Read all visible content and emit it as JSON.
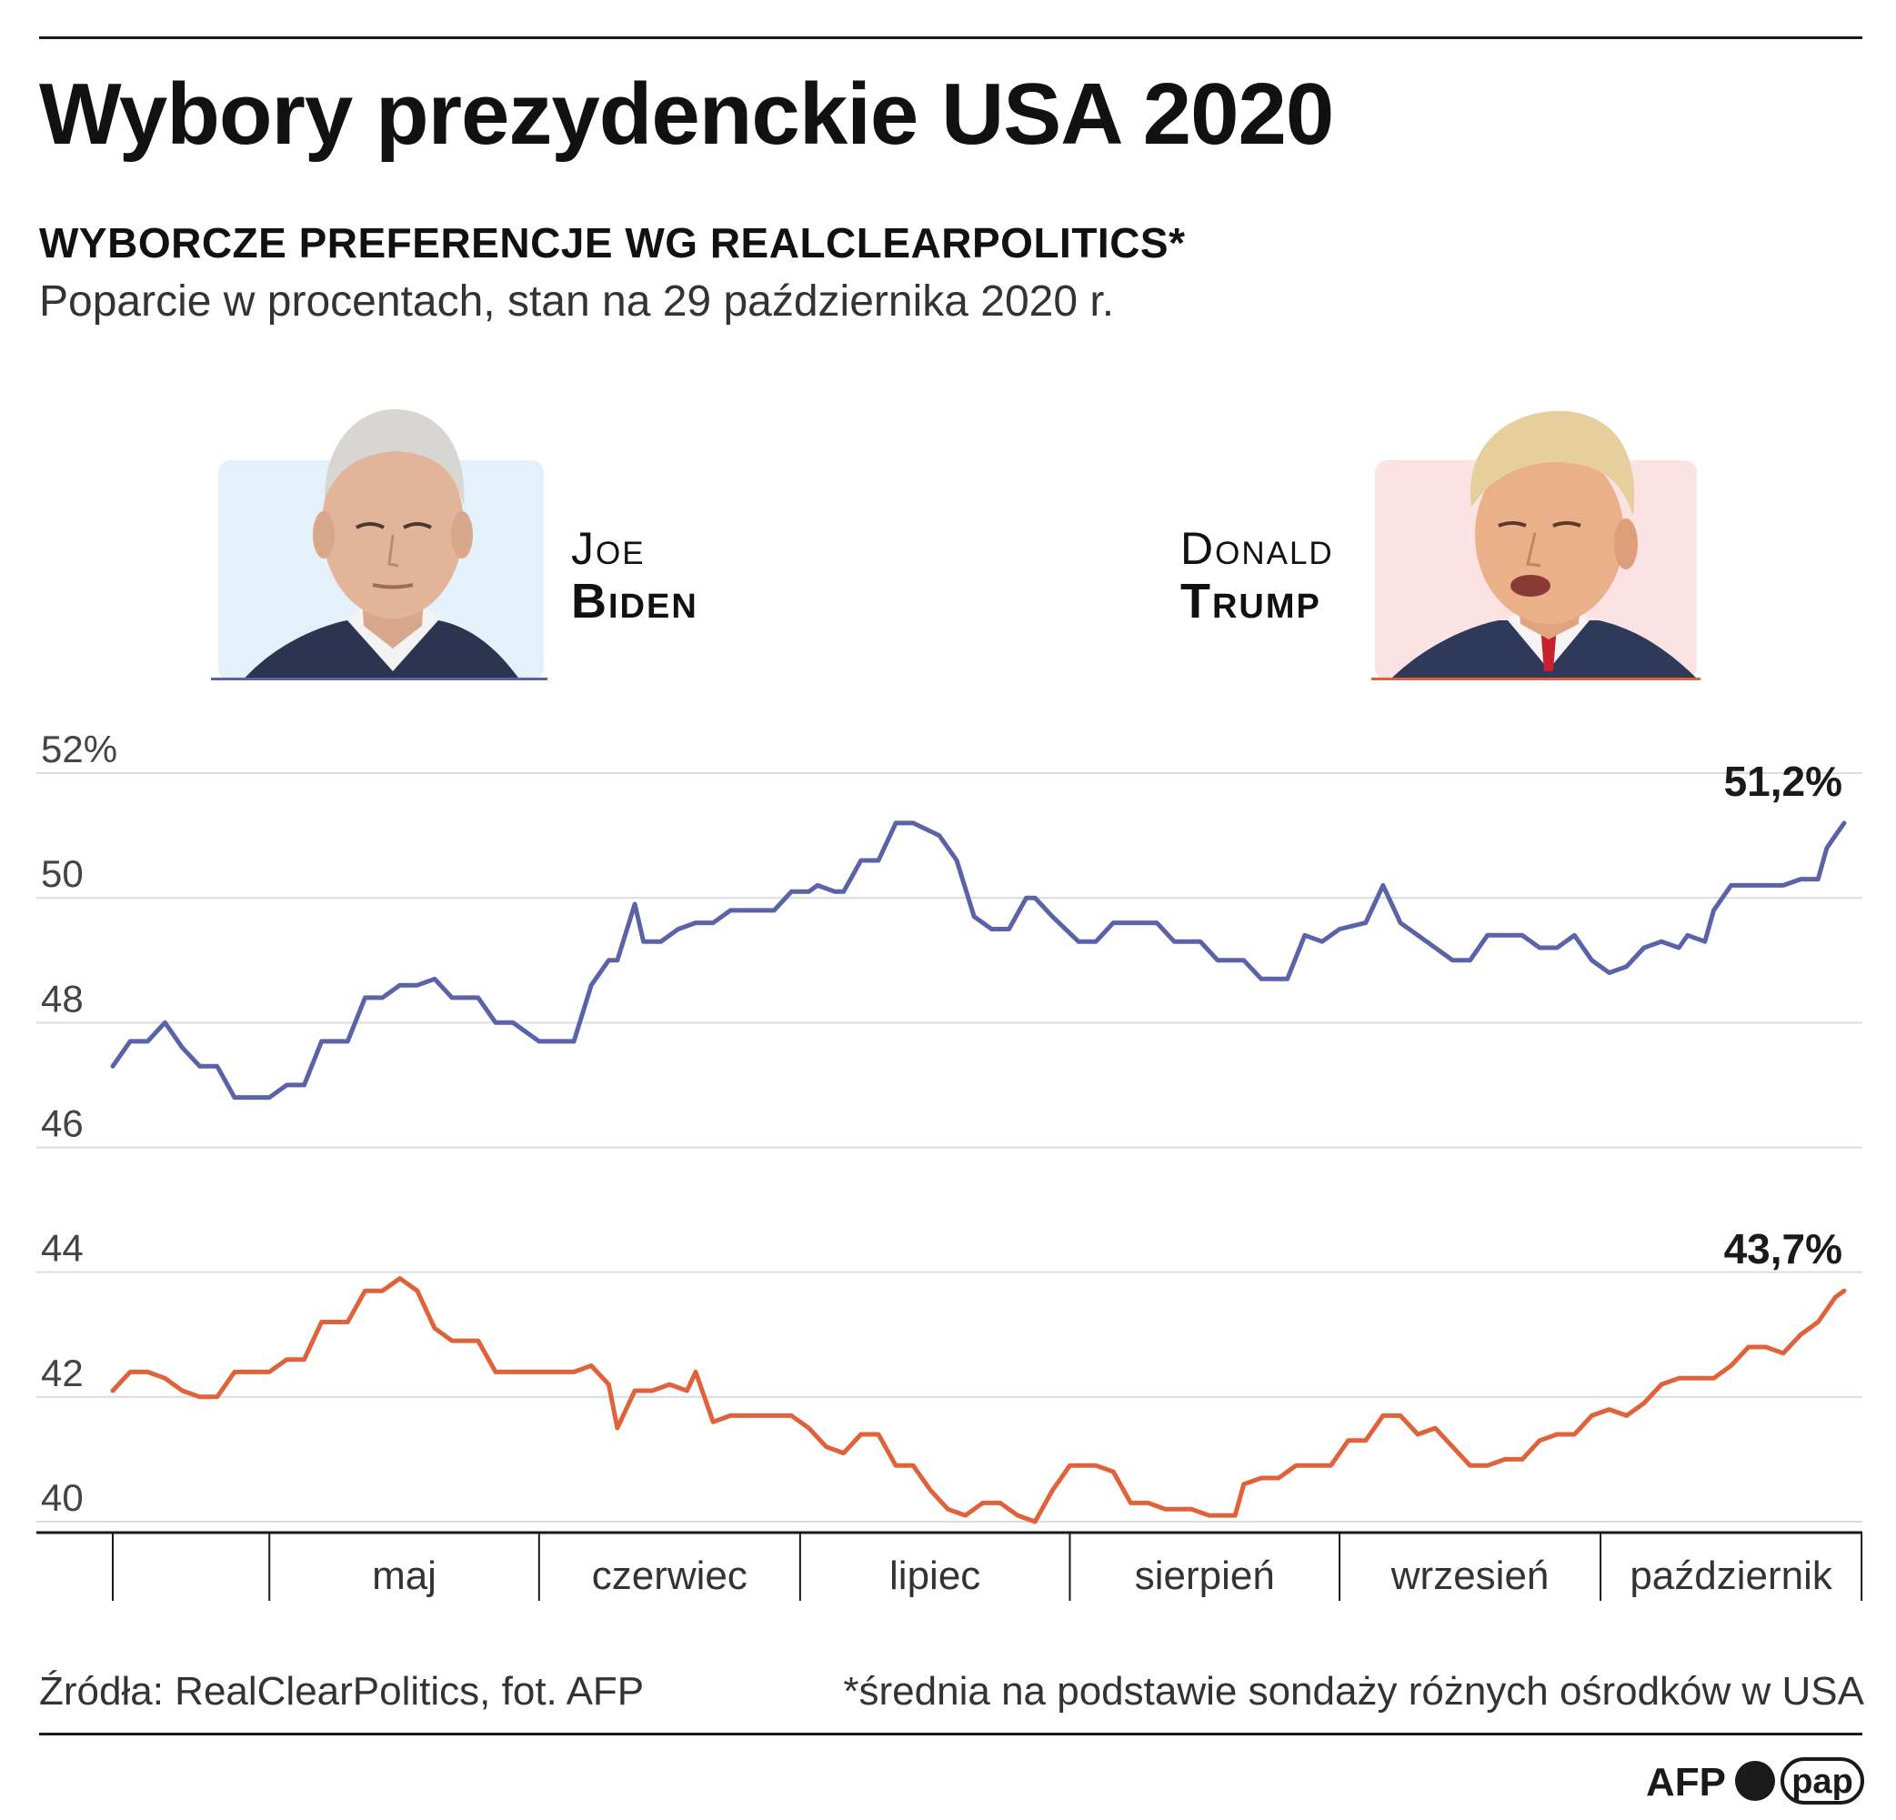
{
  "header": {
    "title": "Wybory prezydenckie USA 2020",
    "subtitle": "WYBORCZE PREFERENCJE WG REALCLEARPOLITICS*",
    "note": "Poparcie w procentach, stan na 29 października 2020 r."
  },
  "candidates": [
    {
      "first": "Joe",
      "last": "Biden",
      "color": "#5a62a8",
      "bg": "#e4f1fa"
    },
    {
      "first": "Donald",
      "last": "Trump",
      "color": "#e0623b",
      "bg": "#fbe3e3"
    }
  ],
  "chart_data": {
    "type": "line",
    "ylim": [
      40,
      52.5
    ],
    "y_ticks": [
      {
        "value": 52,
        "label": "52%"
      },
      {
        "value": 50,
        "label": "50"
      },
      {
        "value": 48,
        "label": "48"
      },
      {
        "value": 46,
        "label": "46"
      },
      {
        "value": 44,
        "label": "44"
      },
      {
        "value": 42,
        "label": "42"
      },
      {
        "value": 40,
        "label": "40"
      }
    ],
    "x_range": [
      "2020-04-13",
      "2020-10-29"
    ],
    "month_boundaries": [
      "2020-05-01",
      "2020-06-01",
      "2020-07-01",
      "2020-08-01",
      "2020-09-01",
      "2020-10-01",
      "2020-10-31"
    ],
    "months": [
      "maj",
      "czerwiec",
      "lipiec",
      "sierpień",
      "wrzesień",
      "październik"
    ],
    "grid": true,
    "series": [
      {
        "name": "Joe Biden",
        "color": "#5a62a8",
        "end_label": "51,2%",
        "points": [
          [
            "2020-04-13",
            47.3
          ],
          [
            "2020-04-15",
            47.7
          ],
          [
            "2020-04-17",
            47.7
          ],
          [
            "2020-04-19",
            48.0
          ],
          [
            "2020-04-21",
            47.6
          ],
          [
            "2020-04-23",
            47.3
          ],
          [
            "2020-04-25",
            47.3
          ],
          [
            "2020-04-27",
            46.8
          ],
          [
            "2020-05-01",
            46.8
          ],
          [
            "2020-05-03",
            47.0
          ],
          [
            "2020-05-05",
            47.0
          ],
          [
            "2020-05-07",
            47.7
          ],
          [
            "2020-05-10",
            47.7
          ],
          [
            "2020-05-12",
            48.4
          ],
          [
            "2020-05-14",
            48.4
          ],
          [
            "2020-05-16",
            48.6
          ],
          [
            "2020-05-18",
            48.6
          ],
          [
            "2020-05-20",
            48.7
          ],
          [
            "2020-05-22",
            48.4
          ],
          [
            "2020-05-25",
            48.4
          ],
          [
            "2020-05-27",
            48.0
          ],
          [
            "2020-05-29",
            48.0
          ],
          [
            "2020-06-01",
            47.7
          ],
          [
            "2020-06-05",
            47.7
          ],
          [
            "2020-06-07",
            48.6
          ],
          [
            "2020-06-09",
            49.0
          ],
          [
            "2020-06-10",
            49.0
          ],
          [
            "2020-06-12",
            49.9
          ],
          [
            "2020-06-13",
            49.3
          ],
          [
            "2020-06-15",
            49.3
          ],
          [
            "2020-06-17",
            49.5
          ],
          [
            "2020-06-19",
            49.6
          ],
          [
            "2020-06-21",
            49.6
          ],
          [
            "2020-06-23",
            49.8
          ],
          [
            "2020-06-28",
            49.8
          ],
          [
            "2020-06-30",
            50.1
          ],
          [
            "2020-07-02",
            50.1
          ],
          [
            "2020-07-03",
            50.2
          ],
          [
            "2020-07-05",
            50.1
          ],
          [
            "2020-07-06",
            50.1
          ],
          [
            "2020-07-08",
            50.6
          ],
          [
            "2020-07-10",
            50.6
          ],
          [
            "2020-07-12",
            51.2
          ],
          [
            "2020-07-14",
            51.2
          ],
          [
            "2020-07-17",
            51.0
          ],
          [
            "2020-07-19",
            50.6
          ],
          [
            "2020-07-21",
            49.7
          ],
          [
            "2020-07-23",
            49.5
          ],
          [
            "2020-07-25",
            49.5
          ],
          [
            "2020-07-27",
            50.0
          ],
          [
            "2020-07-28",
            50.0
          ],
          [
            "2020-07-30",
            49.7
          ],
          [
            "2020-08-02",
            49.3
          ],
          [
            "2020-08-04",
            49.3
          ],
          [
            "2020-08-06",
            49.6
          ],
          [
            "2020-08-11",
            49.6
          ],
          [
            "2020-08-13",
            49.3
          ],
          [
            "2020-08-16",
            49.3
          ],
          [
            "2020-08-18",
            49.0
          ],
          [
            "2020-08-21",
            49.0
          ],
          [
            "2020-08-23",
            48.7
          ],
          [
            "2020-08-26",
            48.7
          ],
          [
            "2020-08-28",
            49.4
          ],
          [
            "2020-08-30",
            49.3
          ],
          [
            "2020-09-01",
            49.5
          ],
          [
            "2020-09-04",
            49.6
          ],
          [
            "2020-09-06",
            50.2
          ],
          [
            "2020-09-08",
            49.6
          ],
          [
            "2020-09-10",
            49.4
          ],
          [
            "2020-09-12",
            49.2
          ],
          [
            "2020-09-14",
            49.0
          ],
          [
            "2020-09-16",
            49.0
          ],
          [
            "2020-09-18",
            49.4
          ],
          [
            "2020-09-20",
            49.4
          ],
          [
            "2020-09-22",
            49.4
          ],
          [
            "2020-09-24",
            49.2
          ],
          [
            "2020-09-26",
            49.2
          ],
          [
            "2020-09-28",
            49.4
          ],
          [
            "2020-09-30",
            49.0
          ],
          [
            "2020-10-02",
            48.8
          ],
          [
            "2020-10-04",
            48.9
          ],
          [
            "2020-10-06",
            49.2
          ],
          [
            "2020-10-08",
            49.3
          ],
          [
            "2020-10-10",
            49.2
          ],
          [
            "2020-10-11",
            49.4
          ],
          [
            "2020-10-13",
            49.3
          ],
          [
            "2020-10-14",
            49.8
          ],
          [
            "2020-10-16",
            50.2
          ],
          [
            "2020-10-18",
            50.2
          ],
          [
            "2020-10-20",
            50.2
          ],
          [
            "2020-10-22",
            50.2
          ],
          [
            "2020-10-24",
            50.3
          ],
          [
            "2020-10-26",
            50.3
          ],
          [
            "2020-10-27",
            50.8
          ],
          [
            "2020-10-28",
            51.0
          ],
          [
            "2020-10-29",
            51.2
          ]
        ]
      },
      {
        "name": "Donald Trump",
        "color": "#e0623b",
        "end_label": "43,7%",
        "points": [
          [
            "2020-04-13",
            42.1
          ],
          [
            "2020-04-15",
            42.4
          ],
          [
            "2020-04-17",
            42.4
          ],
          [
            "2020-04-19",
            42.3
          ],
          [
            "2020-04-21",
            42.1
          ],
          [
            "2020-04-23",
            42.0
          ],
          [
            "2020-04-25",
            42.0
          ],
          [
            "2020-04-27",
            42.4
          ],
          [
            "2020-05-01",
            42.4
          ],
          [
            "2020-05-03",
            42.6
          ],
          [
            "2020-05-05",
            42.6
          ],
          [
            "2020-05-07",
            43.2
          ],
          [
            "2020-05-10",
            43.2
          ],
          [
            "2020-05-12",
            43.7
          ],
          [
            "2020-05-14",
            43.7
          ],
          [
            "2020-05-16",
            43.9
          ],
          [
            "2020-05-18",
            43.7
          ],
          [
            "2020-05-20",
            43.1
          ],
          [
            "2020-05-22",
            42.9
          ],
          [
            "2020-05-25",
            42.9
          ],
          [
            "2020-05-27",
            42.4
          ],
          [
            "2020-06-01",
            42.4
          ],
          [
            "2020-06-03",
            42.4
          ],
          [
            "2020-06-05",
            42.4
          ],
          [
            "2020-06-07",
            42.5
          ],
          [
            "2020-06-09",
            42.2
          ],
          [
            "2020-06-10",
            41.5
          ],
          [
            "2020-06-12",
            42.1
          ],
          [
            "2020-06-14",
            42.1
          ],
          [
            "2020-06-16",
            42.2
          ],
          [
            "2020-06-18",
            42.1
          ],
          [
            "2020-06-19",
            42.4
          ],
          [
            "2020-06-21",
            41.6
          ],
          [
            "2020-06-23",
            41.7
          ],
          [
            "2020-06-27",
            41.7
          ],
          [
            "2020-06-30",
            41.7
          ],
          [
            "2020-07-02",
            41.5
          ],
          [
            "2020-07-04",
            41.2
          ],
          [
            "2020-07-06",
            41.1
          ],
          [
            "2020-07-08",
            41.4
          ],
          [
            "2020-07-10",
            41.4
          ],
          [
            "2020-07-12",
            40.9
          ],
          [
            "2020-07-14",
            40.9
          ],
          [
            "2020-07-16",
            40.5
          ],
          [
            "2020-07-18",
            40.2
          ],
          [
            "2020-07-20",
            40.1
          ],
          [
            "2020-07-22",
            40.3
          ],
          [
            "2020-07-24",
            40.3
          ],
          [
            "2020-07-26",
            40.1
          ],
          [
            "2020-07-28",
            40.0
          ],
          [
            "2020-07-30",
            40.5
          ],
          [
            "2020-08-01",
            40.9
          ],
          [
            "2020-08-04",
            40.9
          ],
          [
            "2020-08-06",
            40.8
          ],
          [
            "2020-08-08",
            40.3
          ],
          [
            "2020-08-10",
            40.3
          ],
          [
            "2020-08-12",
            40.2
          ],
          [
            "2020-08-15",
            40.2
          ],
          [
            "2020-08-17",
            40.1
          ],
          [
            "2020-08-20",
            40.1
          ],
          [
            "2020-08-21",
            40.6
          ],
          [
            "2020-08-23",
            40.7
          ],
          [
            "2020-08-25",
            40.7
          ],
          [
            "2020-08-27",
            40.9
          ],
          [
            "2020-08-31",
            40.9
          ],
          [
            "2020-09-02",
            41.3
          ],
          [
            "2020-09-04",
            41.3
          ],
          [
            "2020-09-06",
            41.7
          ],
          [
            "2020-09-08",
            41.7
          ],
          [
            "2020-09-10",
            41.4
          ],
          [
            "2020-09-12",
            41.5
          ],
          [
            "2020-09-14",
            41.2
          ],
          [
            "2020-09-16",
            40.9
          ],
          [
            "2020-09-18",
            40.9
          ],
          [
            "2020-09-20",
            41.0
          ],
          [
            "2020-09-22",
            41.0
          ],
          [
            "2020-09-24",
            41.3
          ],
          [
            "2020-09-26",
            41.4
          ],
          [
            "2020-09-28",
            41.4
          ],
          [
            "2020-09-30",
            41.7
          ],
          [
            "2020-10-02",
            41.8
          ],
          [
            "2020-10-04",
            41.7
          ],
          [
            "2020-10-06",
            41.9
          ],
          [
            "2020-10-08",
            42.2
          ],
          [
            "2020-10-10",
            42.3
          ],
          [
            "2020-10-12",
            42.3
          ],
          [
            "2020-10-14",
            42.3
          ],
          [
            "2020-10-16",
            42.5
          ],
          [
            "2020-10-18",
            42.8
          ],
          [
            "2020-10-20",
            42.8
          ],
          [
            "2020-10-22",
            42.7
          ],
          [
            "2020-10-24",
            43.0
          ],
          [
            "2020-10-26",
            43.2
          ],
          [
            "2020-10-27",
            43.4
          ],
          [
            "2020-10-28",
            43.6
          ],
          [
            "2020-10-29",
            43.7
          ]
        ]
      }
    ]
  },
  "footer": {
    "source": "Źródła: RealClearPolitics, fot. AFP",
    "footnote": "*średnia na podstawie sondaży różnych ośrodków w USA",
    "logo_afp": "AFP",
    "logo_pap": "pap"
  }
}
